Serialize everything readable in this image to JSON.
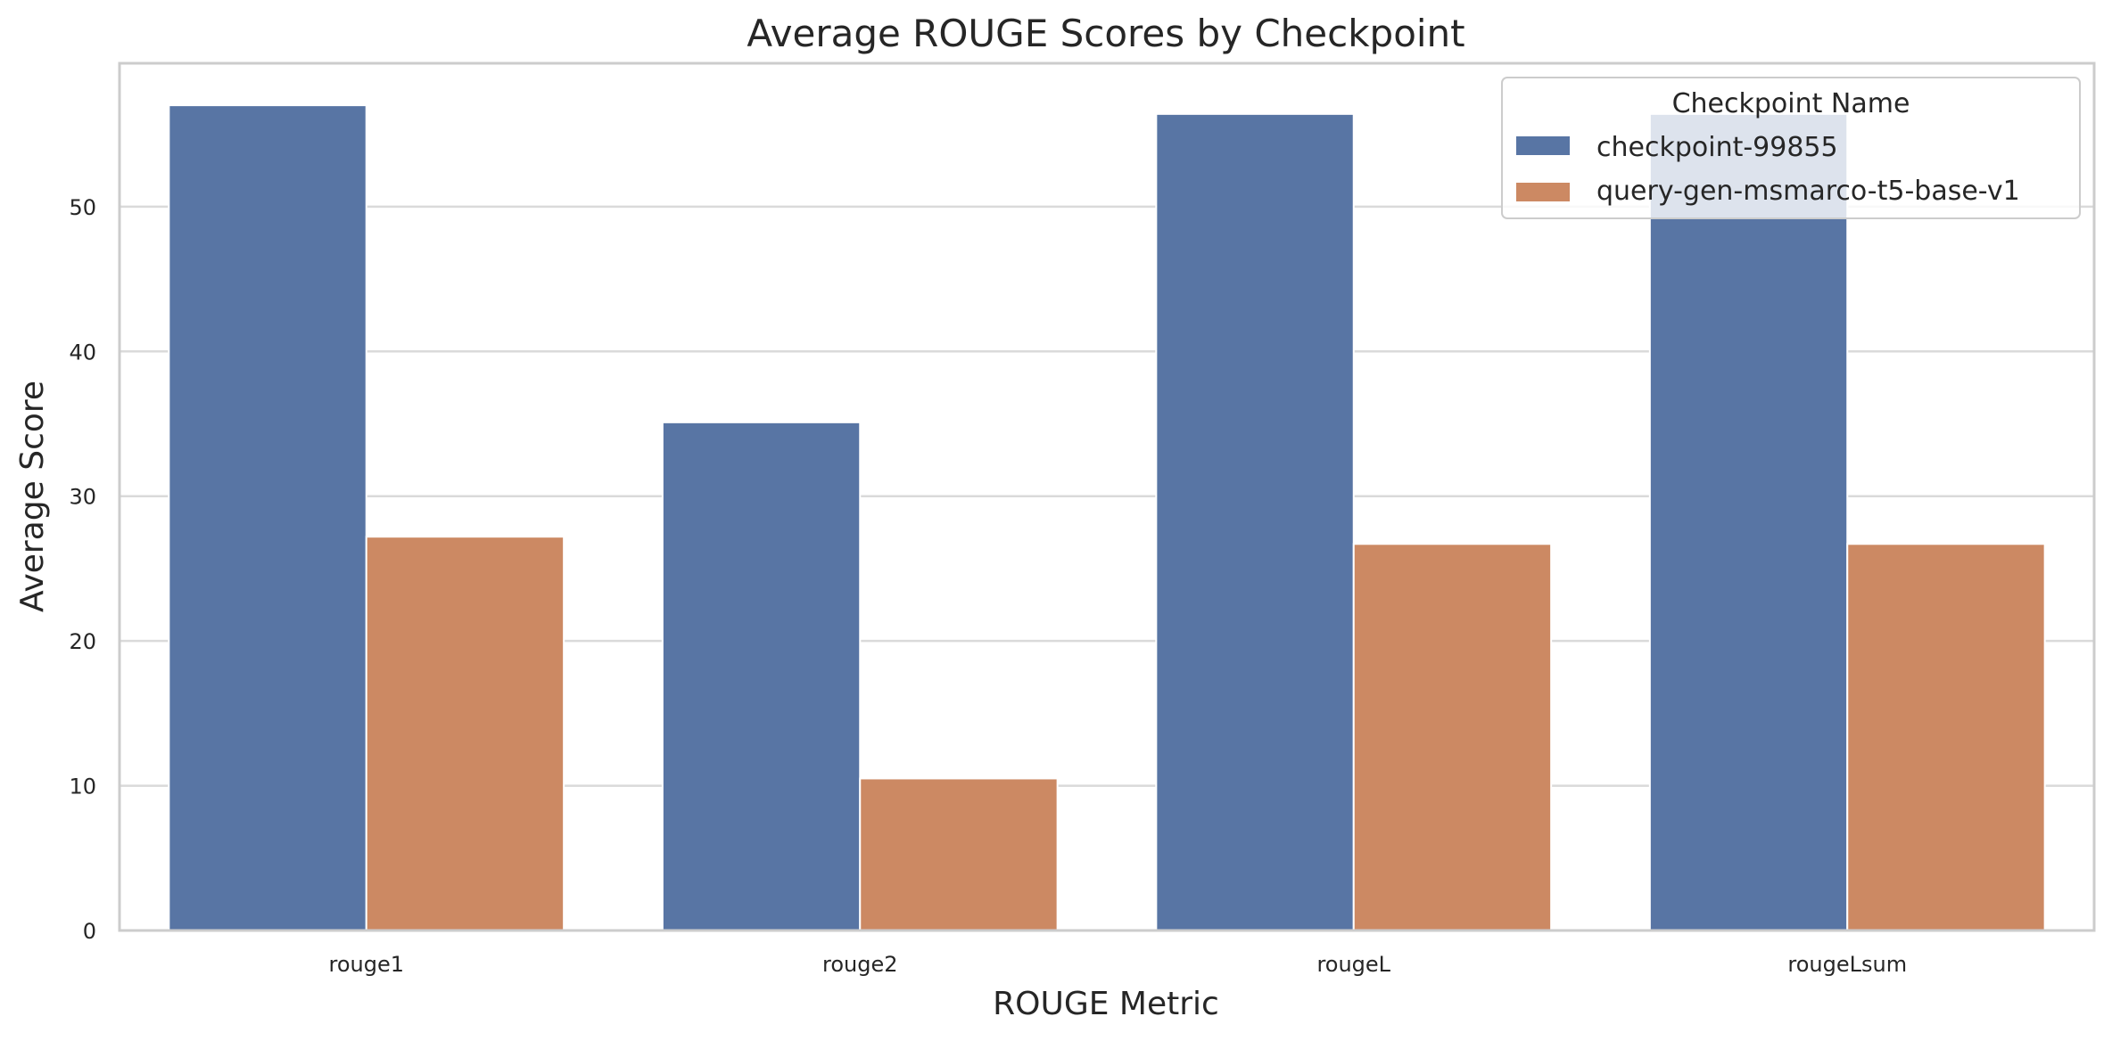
{
  "chart_data": {
    "type": "bar",
    "title": "Average ROUGE Scores by Checkpoint",
    "xlabel": "ROUGE Metric",
    "ylabel": "Average Score",
    "categories": [
      "rouge1",
      "rouge2",
      "rougeL",
      "rougeLsum"
    ],
    "series": [
      {
        "name": "checkpoint-99855",
        "values": [
          57.0,
          35.1,
          56.4,
          56.4
        ],
        "color": "#5875a4"
      },
      {
        "name": "query-gen-msmarco-t5-base-v1",
        "values": [
          27.2,
          10.5,
          26.7,
          26.7
        ],
        "color": "#cc8963"
      }
    ],
    "ylim": [
      0,
      59.9
    ],
    "yticks": [
      0,
      10,
      20,
      30,
      40,
      50
    ],
    "grid": true,
    "legend": {
      "title": "Checkpoint Name",
      "placement": "top-right"
    }
  }
}
